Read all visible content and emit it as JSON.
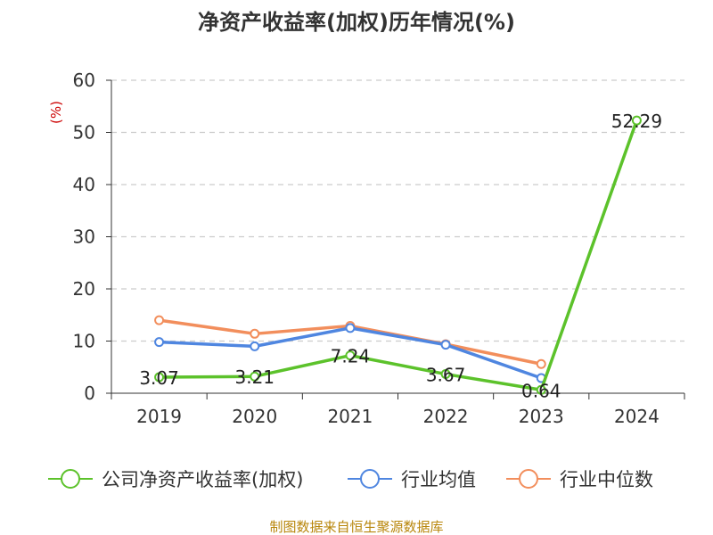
{
  "chart_data": {
    "type": "line",
    "title": "净资产收益率(加权)历年情况(%)",
    "ylabel": "(%)",
    "xlabel": "",
    "categories": [
      "2019",
      "2020",
      "2021",
      "2022",
      "2023",
      "2024"
    ],
    "ylim": [
      0,
      60
    ],
    "yticks": [
      0,
      10,
      20,
      30,
      40,
      50,
      60
    ],
    "grid": true,
    "legend_position": "bottom",
    "series": [
      {
        "name": "公司净资产收益率(加权)",
        "color": "#5cc22b",
        "values": [
          3.07,
          3.21,
          7.24,
          3.67,
          0.64,
          52.29
        ],
        "labels": [
          "3.07",
          "3.21",
          "7.24",
          "3.67",
          "0.64",
          "52.29"
        ]
      },
      {
        "name": "行业均值",
        "color": "#4f86e0",
        "values": [
          9.8,
          9.0,
          12.5,
          9.3,
          2.9,
          null
        ]
      },
      {
        "name": "行业中位数",
        "color": "#f28e5c",
        "values": [
          14.0,
          11.4,
          12.9,
          9.4,
          5.6,
          null
        ]
      }
    ],
    "source": "制图数据来自恒生聚源数据库"
  }
}
